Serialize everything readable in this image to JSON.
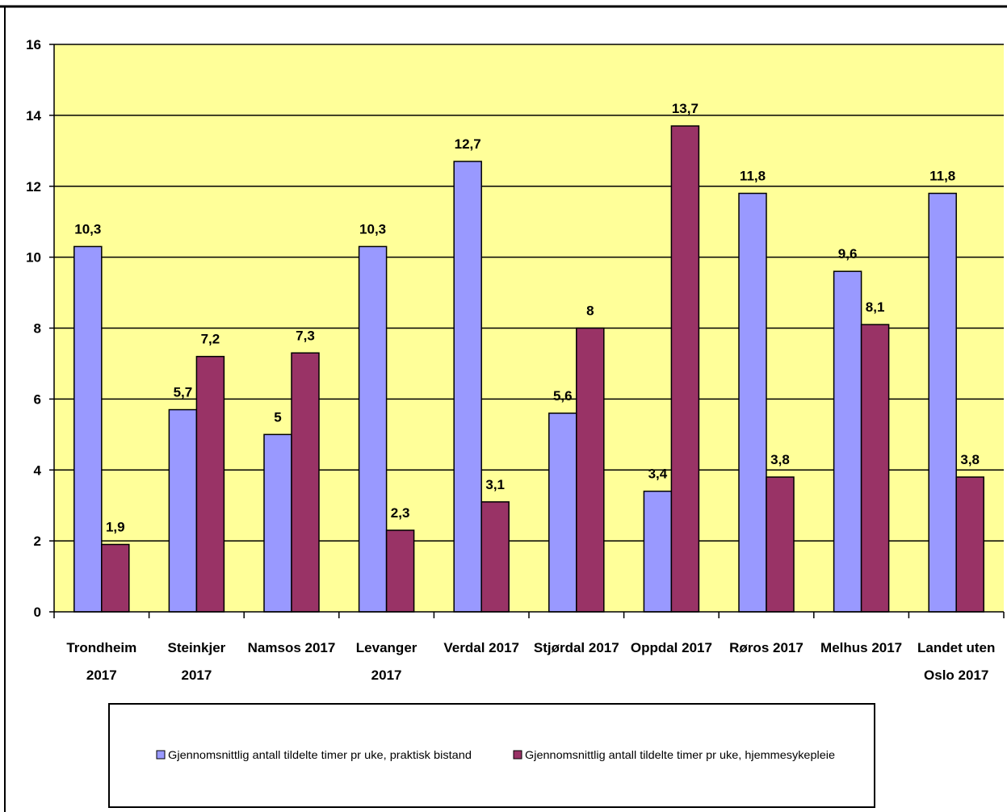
{
  "chart_data": {
    "type": "bar",
    "categories": [
      [
        "Trondheim",
        "2017"
      ],
      [
        "Steinkjer",
        "2017"
      ],
      [
        "Namsos 2017"
      ],
      [
        "Levanger",
        "2017"
      ],
      [
        "Verdal 2017"
      ],
      [
        "Stjørdal 2017"
      ],
      [
        "Oppdal 2017"
      ],
      [
        "Røros 2017"
      ],
      [
        "Melhus 2017"
      ],
      [
        "Landet uten",
        "Oslo 2017"
      ]
    ],
    "series": [
      {
        "name": "Gjennomsnittlig antall tildelte timer pr uke, praktisk bistand",
        "color": "#9999FF",
        "values": [
          10.3,
          5.7,
          5,
          10.3,
          12.7,
          5.6,
          3.4,
          11.8,
          9.6,
          11.8
        ],
        "labels": [
          "10,3",
          "5,7",
          "5",
          "10,3",
          "12,7",
          "5,6",
          "3,4",
          "11,8",
          "9,6",
          "11,8"
        ]
      },
      {
        "name": "Gjennomsnittlig antall tildelte timer pr uke, hjemmesykepleie",
        "color": "#993366",
        "values": [
          1.9,
          7.2,
          7.3,
          2.3,
          3.1,
          8,
          13.7,
          3.8,
          8.1,
          3.8
        ],
        "labels": [
          "1,9",
          "7,2",
          "7,3",
          "2,3",
          "3,1",
          "8",
          "13,7",
          "3,8",
          "8,1",
          "3,8"
        ]
      }
    ],
    "ylim": [
      0,
      16
    ],
    "yticks": [
      0,
      2,
      4,
      6,
      8,
      10,
      12,
      14,
      16
    ],
    "grid": true,
    "plot_background": "#FFFF99",
    "legend_position": "bottom"
  }
}
